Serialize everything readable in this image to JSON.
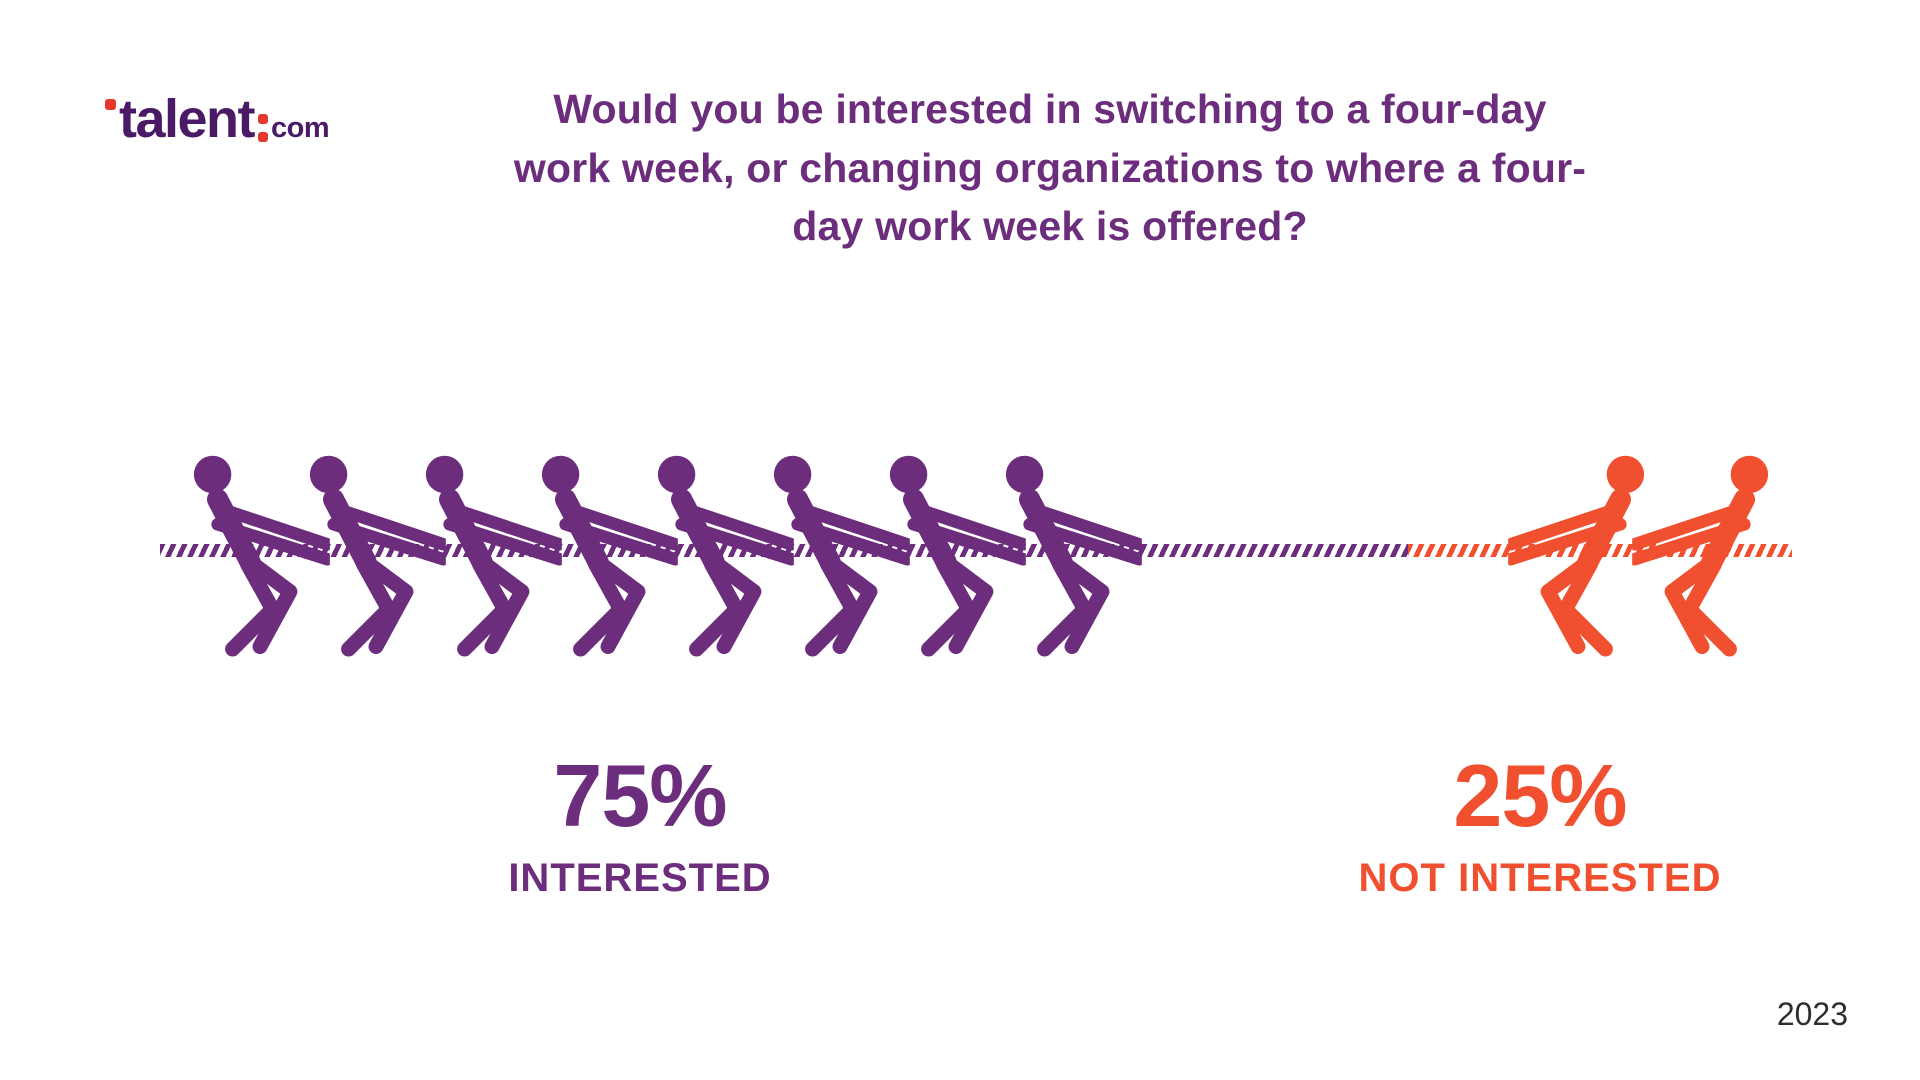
{
  "brand": {
    "word": "talent",
    "tld": "com"
  },
  "title": {
    "line1": "Would you be interested in switching to a four-day",
    "line2": "work week, or changing organizations to where a four-",
    "line3": "day work week is offered?"
  },
  "results": {
    "interested": {
      "percent": "75%",
      "label": "INTERESTED"
    },
    "not_interested": {
      "percent": "25%",
      "label": "NOT INTERESTED"
    }
  },
  "footer": {
    "year": "2023"
  },
  "colors": {
    "purple": "#6C2D7C",
    "orange": "#F0502F",
    "logo_purple": "#4A1A66",
    "logo_red": "#E5372C"
  },
  "chart_data": {
    "type": "pie",
    "variant": "pictogram-tug-of-war",
    "title": "Would you be interested in switching to a four-day work week, or changing organizations to where a four-day work week is offered?",
    "categories": [
      "Interested",
      "Not interested"
    ],
    "values": [
      75,
      25
    ],
    "unit": "%",
    "pictogram": {
      "interested_figures": 8,
      "not_interested_figures": 2
    },
    "colors": {
      "interested": "#6C2D7C",
      "not_interested": "#F0502F"
    },
    "year": "2023",
    "source": "talent.com"
  }
}
